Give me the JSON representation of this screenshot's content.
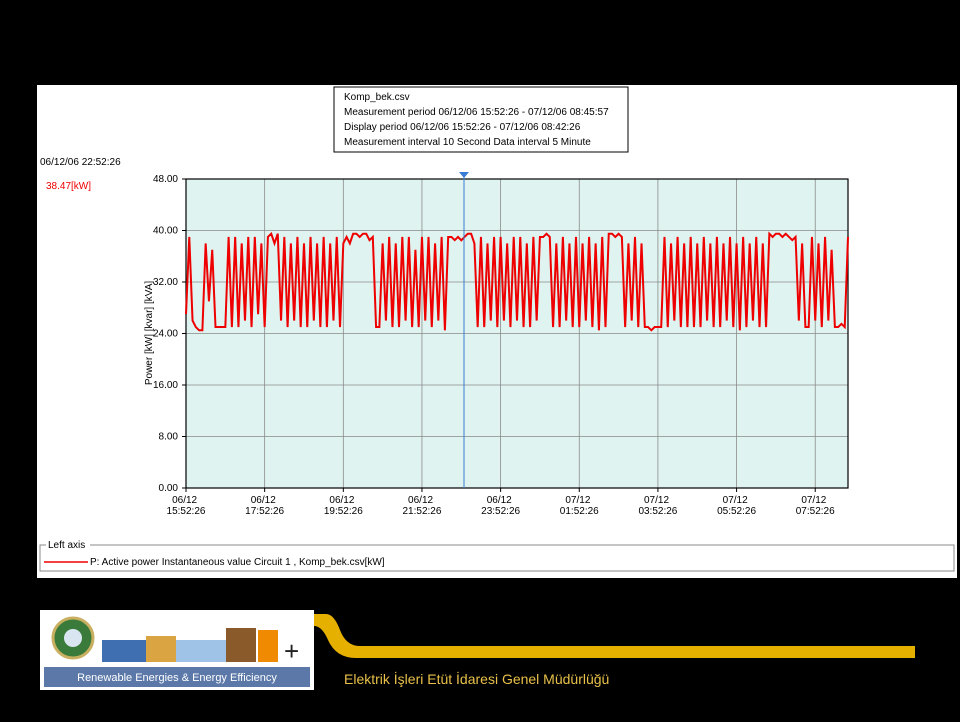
{
  "chart_data": {
    "type": "line",
    "annotations": [
      "Komp_bek.csv",
      "Measurement period  06/12/06 15:52:26 - 07/12/06 08:45:57",
      "Display period  06/12/06 15:52:26 - 07/12/06 08:42:26",
      "Measurement interval  10 Second  Data interval  5 Minute"
    ],
    "cursor_time": "06/12/06 22:52:26",
    "cursor_readout": "38.47[kW]",
    "ylabel": "Power [kW] [kvar] [kVA]",
    "ylim": [
      0,
      48
    ],
    "yticks": [
      {
        "value": 0,
        "label": "0.00"
      },
      {
        "value": 8,
        "label": "8.00"
      },
      {
        "value": 16,
        "label": "16.00"
      },
      {
        "value": 24,
        "label": "24.00"
      },
      {
        "value": 32,
        "label": "32.00"
      },
      {
        "value": 40,
        "label": "40.00"
      },
      {
        "value": 48,
        "label": "48.00"
      }
    ],
    "grid": true,
    "legend_title": "Left axis",
    "categories": [
      "06/12 15:52:26",
      null,
      null,
      null,
      null,
      null,
      null,
      null,
      null,
      null,
      null,
      null,
      null,
      null,
      null,
      null,
      null,
      null,
      null,
      null,
      null,
      null,
      null,
      null,
      "06/12 17:52:26",
      null,
      null,
      null,
      null,
      null,
      null,
      null,
      null,
      null,
      null,
      null,
      null,
      null,
      null,
      null,
      null,
      null,
      null,
      null,
      null,
      null,
      null,
      null,
      "06/12 19:52:26",
      null,
      null,
      null,
      null,
      null,
      null,
      null,
      null,
      null,
      null,
      null,
      null,
      null,
      null,
      null,
      null,
      null,
      null,
      null,
      null,
      null,
      null,
      null,
      "06/12 21:52:26",
      null,
      null,
      null,
      null,
      null,
      null,
      null,
      null,
      null,
      null,
      null,
      null,
      null,
      null,
      null,
      null,
      null,
      null,
      null,
      null,
      null,
      null,
      null,
      "06/12 23:52:26",
      null,
      null,
      null,
      null,
      null,
      null,
      null,
      null,
      null,
      null,
      null,
      null,
      null,
      null,
      null,
      null,
      null,
      null,
      null,
      null,
      null,
      null,
      null,
      "07/12 01:52:26",
      null,
      null,
      null,
      null,
      null,
      null,
      null,
      null,
      null,
      null,
      null,
      null,
      null,
      null,
      null,
      null,
      null,
      null,
      null,
      null,
      null,
      null,
      null,
      "07/12 03:52:26",
      null,
      null,
      null,
      null,
      null,
      null,
      null,
      null,
      null,
      null,
      null,
      null,
      null,
      null,
      null,
      null,
      null,
      null,
      null,
      null,
      null,
      null,
      null,
      "07/12 05:52:26",
      null,
      null,
      null,
      null,
      null,
      null,
      null,
      null,
      null,
      null,
      null,
      null,
      null,
      null,
      null,
      null,
      null,
      null,
      null,
      null,
      null,
      null,
      null,
      "07/12 07:52:26",
      null,
      null,
      null,
      null,
      null,
      null,
      null,
      null,
      null,
      null
    ],
    "series": [
      {
        "name": "P: Active power Instantaneous value Circuit 1 , Komp_bek.csv[kW]",
        "color": "#ee0000",
        "values": [
          27,
          39,
          26,
          25,
          24.5,
          24.5,
          38,
          29,
          37,
          25,
          25,
          25,
          25,
          39,
          25,
          39,
          25,
          38,
          26,
          39,
          25,
          39,
          27,
          38,
          25,
          39,
          39.5,
          38,
          39.5,
          26,
          39,
          25,
          38,
          26,
          39,
          25,
          38,
          25,
          39,
          26,
          38,
          25,
          39,
          25,
          38,
          26,
          39,
          25,
          38,
          39,
          38,
          39.5,
          39.5,
          39,
          39.5,
          39.5,
          38.5,
          39,
          25,
          25,
          38,
          26,
          39,
          25,
          38,
          25,
          39,
          26,
          39,
          25,
          37,
          25,
          39,
          26,
          39,
          25,
          38,
          26,
          39,
          24.5,
          39,
          39,
          38.5,
          39,
          38.47,
          39,
          39.5,
          39.5,
          38,
          25,
          39,
          25,
          38,
          26,
          39,
          25,
          39,
          26,
          38,
          25,
          39,
          26,
          39,
          25,
          38,
          25,
          39,
          26,
          39,
          39,
          39.5,
          39,
          25,
          38,
          25,
          39,
          26,
          38,
          25,
          39,
          25,
          38,
          26,
          39,
          25,
          38,
          24.5,
          39,
          25,
          39.5,
          39.5,
          39,
          39.5,
          39,
          25,
          38,
          26,
          39,
          25,
          38,
          25,
          25,
          24.5,
          25,
          25,
          25,
          39,
          25,
          38,
          26,
          39,
          25,
          38,
          25,
          39,
          25,
          38,
          25,
          39,
          26,
          38,
          25,
          39,
          25,
          38,
          26,
          39,
          25,
          38,
          24.5,
          39,
          25,
          38,
          26,
          39,
          25,
          38,
          25,
          39.5,
          39,
          39.5,
          39.5,
          39,
          39.5,
          39,
          38.5,
          39,
          26,
          38,
          25,
          25,
          39,
          26,
          38,
          25,
          39,
          26,
          37,
          25,
          25,
          25.5,
          25,
          39
        ]
      }
    ]
  },
  "footer": {
    "logo_caption": "Renewable Energies & Energy Efficiency",
    "organization": "Elektrik İşleri Etüt İdaresi Genel Müdürlüğü"
  }
}
